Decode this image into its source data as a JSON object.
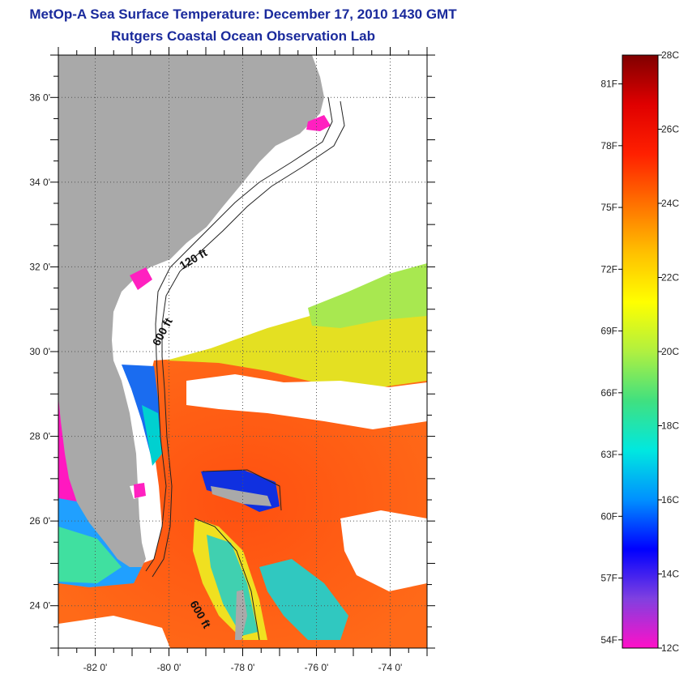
{
  "title": "MetOp-A Sea Surface Temperature:  December 17, 2010 1430 GMT",
  "subtitle": "Rutgers Coastal Ocean Observation Lab",
  "map": {
    "lon_labels": [
      "-82 0'",
      "-80 0'",
      "-78 0'",
      "-76 0'",
      "-74 0'"
    ],
    "lon_values": [
      -82,
      -80,
      -78,
      -76,
      -74
    ],
    "lat_labels": [
      "36 0'",
      "34 0'",
      "32 0'",
      "30 0'",
      "28 0'",
      "26 0'",
      "24 0'"
    ],
    "lat_values": [
      36,
      34,
      32,
      30,
      28,
      26,
      24
    ],
    "lon_range": [
      -83,
      -73
    ],
    "lat_range": [
      23,
      37
    ],
    "isobaths": [
      {
        "label": "120 ft"
      },
      {
        "label": "600 ft"
      },
      {
        "label": "600 ft"
      }
    ],
    "colors": {
      "land": "#a9a9a9",
      "cloud": "#ffffff",
      "warm_water": "#ff5a10",
      "cool_water": "#e8e020"
    }
  },
  "colorbar": {
    "celsius_labels": [
      "28C",
      "26C",
      "24C",
      "22C",
      "20C",
      "18C",
      "16C",
      "14C",
      "12C"
    ],
    "celsius_values": [
      28,
      26,
      24,
      22,
      20,
      18,
      16,
      14,
      12
    ],
    "fahrenheit_labels": [
      "81F",
      "78F",
      "75F",
      "72F",
      "69F",
      "66F",
      "63F",
      "60F",
      "57F",
      "54F"
    ],
    "fahrenheit_values": [
      81,
      78,
      75,
      72,
      69,
      66,
      63,
      60,
      57,
      54
    ],
    "range_c": [
      12,
      28
    ],
    "stops": [
      "#ff10c8",
      "#8040e0",
      "#0000ff",
      "#0090ff",
      "#00e8e0",
      "#40e080",
      "#b0f040",
      "#ffff00",
      "#ffc000",
      "#ff7000",
      "#ff2000",
      "#e00000",
      "#800000"
    ]
  }
}
